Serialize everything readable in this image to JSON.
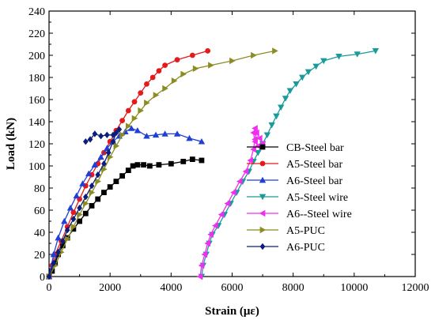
{
  "chart_data": {
    "type": "line",
    "title": "",
    "xlabel": "Strain (με)",
    "ylabel": "Load (kN)",
    "xlim": [
      0,
      12000
    ],
    "ylim": [
      0,
      240
    ],
    "xticks": [
      0,
      2000,
      4000,
      6000,
      8000,
      10000,
      12000
    ],
    "yticks": [
      0,
      20,
      40,
      60,
      80,
      100,
      120,
      140,
      160,
      180,
      200,
      220,
      240
    ],
    "grid": false,
    "legend_position": "right",
    "series": [
      {
        "name": "CB-Steel bar",
        "color": "#000000",
        "marker": "square",
        "points": [
          [
            0,
            0
          ],
          [
            100,
            5
          ],
          [
            200,
            12
          ],
          [
            300,
            20
          ],
          [
            450,
            28
          ],
          [
            600,
            35
          ],
          [
            800,
            43
          ],
          [
            1000,
            50
          ],
          [
            1200,
            57
          ],
          [
            1400,
            64
          ],
          [
            1600,
            70
          ],
          [
            1800,
            76
          ],
          [
            2000,
            81
          ],
          [
            2200,
            86
          ],
          [
            2400,
            91
          ],
          [
            2600,
            96
          ],
          [
            2750,
            100
          ],
          [
            2900,
            101
          ],
          [
            3100,
            101
          ],
          [
            3300,
            100
          ],
          [
            3600,
            101
          ],
          [
            4000,
            102
          ],
          [
            4400,
            104
          ],
          [
            4700,
            106
          ],
          [
            5000,
            105
          ]
        ]
      },
      {
        "name": "A5-Steel bar",
        "color": "#e41a1c",
        "marker": "circle",
        "points": [
          [
            0,
            0
          ],
          [
            100,
            10
          ],
          [
            200,
            20
          ],
          [
            400,
            32
          ],
          [
            600,
            45
          ],
          [
            800,
            58
          ],
          [
            1000,
            70
          ],
          [
            1200,
            82
          ],
          [
            1400,
            92
          ],
          [
            1600,
            102
          ],
          [
            1800,
            112
          ],
          [
            2000,
            122
          ],
          [
            2200,
            132
          ],
          [
            2400,
            141
          ],
          [
            2600,
            150
          ],
          [
            2800,
            158
          ],
          [
            3000,
            166
          ],
          [
            3200,
            174
          ],
          [
            3400,
            180
          ],
          [
            3600,
            186
          ],
          [
            3800,
            191
          ],
          [
            4200,
            196
          ],
          [
            4700,
            200
          ],
          [
            5200,
            204
          ]
        ]
      },
      {
        "name": "A6-Steel bar",
        "color": "#1f3fd6",
        "marker": "triangle-up",
        "points": [
          [
            0,
            0
          ],
          [
            150,
            20
          ],
          [
            300,
            35
          ],
          [
            500,
            50
          ],
          [
            700,
            62
          ],
          [
            900,
            73
          ],
          [
            1100,
            84
          ],
          [
            1300,
            93
          ],
          [
            1500,
            101
          ],
          [
            1700,
            108
          ],
          [
            1900,
            116
          ],
          [
            2100,
            122
          ],
          [
            2300,
            127
          ],
          [
            2500,
            131
          ],
          [
            2700,
            134
          ],
          [
            2900,
            132
          ],
          [
            3200,
            127
          ],
          [
            3500,
            128
          ],
          [
            3800,
            129
          ],
          [
            4200,
            129
          ],
          [
            4600,
            125
          ],
          [
            5000,
            122
          ]
        ]
      },
      {
        "name": "A5-Steel wire",
        "color": "#1a9a9a",
        "marker": "triangle-down",
        "points": [
          [
            5000,
            0
          ],
          [
            5050,
            10
          ],
          [
            5150,
            20
          ],
          [
            5250,
            30
          ],
          [
            5350,
            38
          ],
          [
            5550,
            46
          ],
          [
            5750,
            56
          ],
          [
            5950,
            66
          ],
          [
            6150,
            76
          ],
          [
            6350,
            86
          ],
          [
            6550,
            95
          ],
          [
            6700,
            104
          ],
          [
            6850,
            112
          ],
          [
            7000,
            120
          ],
          [
            7150,
            128
          ],
          [
            7300,
            137
          ],
          [
            7450,
            145
          ],
          [
            7600,
            153
          ],
          [
            7750,
            161
          ],
          [
            7900,
            168
          ],
          [
            8100,
            174
          ],
          [
            8300,
            180
          ],
          [
            8500,
            185
          ],
          [
            8750,
            190
          ],
          [
            9000,
            195
          ],
          [
            9500,
            199
          ],
          [
            10100,
            201
          ],
          [
            10700,
            204
          ]
        ]
      },
      {
        "name": "A6--Steel wire",
        "color": "#f02ef0",
        "marker": "triangle-left",
        "points": [
          [
            4950,
            0
          ],
          [
            5000,
            10
          ],
          [
            5100,
            20
          ],
          [
            5200,
            30
          ],
          [
            5300,
            38
          ],
          [
            5450,
            46
          ],
          [
            5650,
            56
          ],
          [
            5850,
            66
          ],
          [
            6050,
            76
          ],
          [
            6250,
            86
          ],
          [
            6450,
            95
          ],
          [
            6600,
            105
          ],
          [
            6700,
            115
          ],
          [
            6750,
            124
          ],
          [
            6800,
            130
          ],
          [
            6900,
            125
          ],
          [
            7000,
            120
          ],
          [
            6850,
            118
          ],
          [
            6750,
            122
          ],
          [
            6700,
            130
          ],
          [
            6750,
            134
          ]
        ]
      },
      {
        "name": "A5-PUC",
        "color": "#8c8c22",
        "marker": "triangle-right",
        "points": [
          [
            0,
            0
          ],
          [
            200,
            10
          ],
          [
            400,
            22
          ],
          [
            600,
            34
          ],
          [
            800,
            45
          ],
          [
            1000,
            56
          ],
          [
            1200,
            66
          ],
          [
            1400,
            76
          ],
          [
            1600,
            86
          ],
          [
            1800,
            97
          ],
          [
            2000,
            108
          ],
          [
            2200,
            118
          ],
          [
            2400,
            128
          ],
          [
            2600,
            136
          ],
          [
            2800,
            143
          ],
          [
            3000,
            150
          ],
          [
            3200,
            157
          ],
          [
            3500,
            164
          ],
          [
            3800,
            170
          ],
          [
            4100,
            177
          ],
          [
            4400,
            183
          ],
          [
            4800,
            188
          ],
          [
            5300,
            191
          ],
          [
            6000,
            195
          ],
          [
            6700,
            200
          ],
          [
            7400,
            204
          ]
        ]
      },
      {
        "name": "A6-PUC",
        "color": "#0b1f7a",
        "marker": "diamond",
        "points": [
          [
            0,
            0
          ],
          [
            150,
            12
          ],
          [
            300,
            22
          ],
          [
            450,
            32
          ],
          [
            600,
            42
          ],
          [
            800,
            52
          ],
          [
            1000,
            62
          ],
          [
            1200,
            72
          ],
          [
            1400,
            82
          ],
          [
            1600,
            92
          ],
          [
            1800,
            102
          ],
          [
            1950,
            112
          ],
          [
            2100,
            122
          ],
          [
            2200,
            130
          ],
          [
            2300,
            133
          ],
          [
            2100,
            128
          ],
          [
            1900,
            128
          ],
          [
            1700,
            127
          ],
          [
            1500,
            129
          ],
          [
            1350,
            124
          ],
          [
            1200,
            122
          ]
        ]
      }
    ]
  }
}
